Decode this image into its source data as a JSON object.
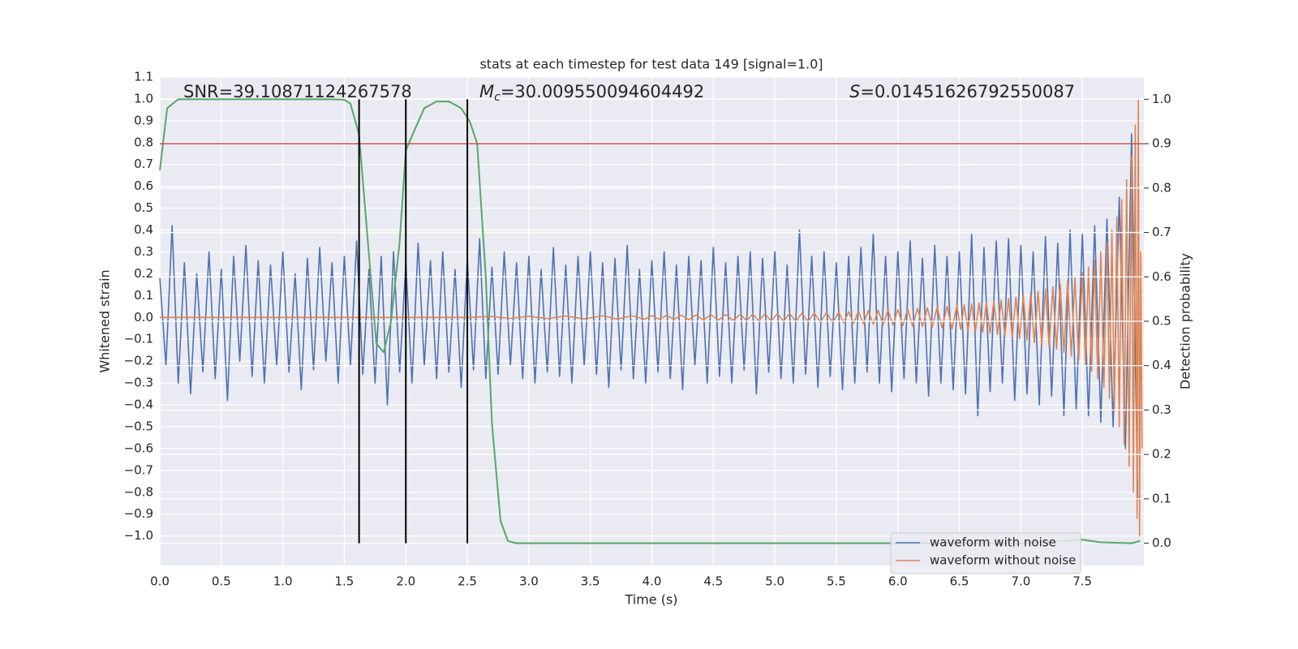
{
  "chart_data": {
    "type": "line",
    "title": "stats at each timestep for test data 149 [signal=1.0]",
    "xlabel": "Time (s)",
    "ylabel": "Whitened strain",
    "y2label": "Detection probability",
    "xlim": [
      0,
      8
    ],
    "ylim": [
      -1.135,
      1.1
    ],
    "y2lim": [
      -0.05,
      1.05
    ],
    "xticks": [
      {
        "value": 0,
        "label": "0.0"
      },
      0.5,
      {
        "value": 1,
        "label": "1.0"
      },
      1.5,
      {
        "value": 2,
        "label": "2.0"
      },
      2.5,
      {
        "value": 3,
        "label": "3.0"
      },
      3.5,
      {
        "value": 4,
        "label": "4.0"
      },
      4.5,
      {
        "value": 5,
        "label": "5.0"
      },
      5.5,
      {
        "value": 6,
        "label": "6.0"
      },
      6.5,
      {
        "value": 7,
        "label": "7.0"
      },
      7.5
    ],
    "yticks": [
      {
        "value": -1,
        "label": "−1.0"
      },
      {
        "value": -0.9,
        "label": "−0.9"
      },
      {
        "value": -0.8,
        "label": "−0.8"
      },
      {
        "value": -0.7,
        "label": "−0.7"
      },
      {
        "value": -0.6,
        "label": "−0.6"
      },
      {
        "value": -0.5,
        "label": "−0.5"
      },
      {
        "value": -0.4,
        "label": "−0.4"
      },
      {
        "value": -0.3,
        "label": "−0.3"
      },
      {
        "value": -0.2,
        "label": "−0.2"
      },
      {
        "value": -0.1,
        "label": "−0.1"
      },
      {
        "value": 0,
        "label": "0.0"
      },
      0.1,
      0.2,
      0.3,
      0.4,
      0.5,
      0.6,
      0.7,
      0.8,
      0.9,
      {
        "value": 1,
        "label": "1.0"
      },
      1.1
    ],
    "y2ticks": [
      {
        "value": 0,
        "label": "0.0"
      },
      0.1,
      0.2,
      0.3,
      0.4,
      0.5,
      0.6,
      0.7,
      0.8,
      0.9,
      {
        "value": 1,
        "label": "1.0"
      }
    ],
    "grid": true,
    "legend": "lower right",
    "annotations": [
      {
        "text": "SNR=39.10871124267578"
      },
      {
        "symbol": "M",
        "subscript": "c",
        "text": "=30.009550094604492"
      },
      {
        "symbol": "S",
        "text": "=0.01451626792550087"
      }
    ],
    "hlines": [
      {
        "value": 0.9,
        "axis": "y2",
        "color": "#c44e52"
      }
    ],
    "vlines": {
      "x": [
        1.62,
        2.0,
        2.5
      ],
      "y2range": [
        0,
        1
      ],
      "color": "#000000"
    },
    "series": [
      {
        "name": "waveform with noise",
        "color": "#4c72b0",
        "axis": "y",
        "x": [
          0,
          0.05,
          0.1,
          0.15,
          0.2,
          0.25,
          0.3,
          0.35,
          0.4,
          0.45,
          0.5,
          0.55,
          0.6,
          0.65,
          0.7,
          0.75,
          0.8,
          0.85,
          0.9,
          0.95,
          1,
          1.05,
          1.1,
          1.15,
          1.2,
          1.25,
          1.3,
          1.35,
          1.4,
          1.45,
          1.5,
          1.55,
          1.6,
          1.65,
          1.7,
          1.75,
          1.8,
          1.85,
          1.9,
          1.95,
          2,
          2.05,
          2.1,
          2.15,
          2.2,
          2.25,
          2.3,
          2.35,
          2.4,
          2.45,
          2.5,
          2.55,
          2.6,
          2.65,
          2.7,
          2.75,
          2.8,
          2.85,
          2.9,
          2.95,
          3,
          3.05,
          3.1,
          3.15,
          3.2,
          3.25,
          3.3,
          3.35,
          3.4,
          3.45,
          3.5,
          3.55,
          3.6,
          3.65,
          3.7,
          3.75,
          3.8,
          3.85,
          3.9,
          3.95,
          4,
          4.05,
          4.1,
          4.15,
          4.2,
          4.25,
          4.3,
          4.35,
          4.4,
          4.45,
          4.5,
          4.55,
          4.6,
          4.65,
          4.7,
          4.75,
          4.8,
          4.85,
          4.9,
          4.95,
          5,
          5.05,
          5.1,
          5.15,
          5.2,
          5.25,
          5.3,
          5.35,
          5.4,
          5.45,
          5.5,
          5.55,
          5.6,
          5.65,
          5.7,
          5.75,
          5.8,
          5.85,
          5.9,
          5.95,
          6,
          6.05,
          6.1,
          6.15,
          6.2,
          6.25,
          6.3,
          6.35,
          6.4,
          6.45,
          6.5,
          6.55,
          6.6,
          6.65,
          6.7,
          6.75,
          6.8,
          6.85,
          6.9,
          6.95,
          7,
          7.05,
          7.1,
          7.15,
          7.2,
          7.25,
          7.3,
          7.35,
          7.4,
          7.45,
          7.5,
          7.55,
          7.6,
          7.65,
          7.7,
          7.75,
          7.8,
          7.85,
          7.9,
          7.95
        ],
        "values": [
          0.18,
          -0.22,
          0.42,
          -0.3,
          0.25,
          -0.35,
          0.2,
          -0.25,
          0.3,
          -0.28,
          0.22,
          -0.38,
          0.28,
          -0.2,
          0.33,
          -0.27,
          0.26,
          -0.3,
          0.24,
          -0.22,
          0.3,
          -0.25,
          0.2,
          -0.33,
          0.27,
          -0.24,
          0.32,
          -0.2,
          0.25,
          -0.3,
          0.28,
          -0.22,
          0.35,
          -0.26,
          0.22,
          -0.3,
          0.28,
          -0.4,
          0.3,
          -0.25,
          0.25,
          -0.3,
          0.34,
          -0.22,
          0.26,
          -0.28,
          0.3,
          -0.25,
          0.22,
          -0.32,
          0.27,
          -0.24,
          0.36,
          -0.28,
          0.23,
          -0.26,
          0.3,
          -0.22,
          0.25,
          -0.28,
          0.28,
          -0.3,
          0.22,
          -0.25,
          0.32,
          -0.27,
          0.24,
          -0.3,
          0.28,
          -0.22,
          0.3,
          -0.26,
          0.25,
          -0.32,
          0.27,
          -0.24,
          0.33,
          -0.28,
          0.22,
          -0.3,
          0.26,
          -0.25,
          0.3,
          -0.28,
          0.24,
          -0.33,
          0.28,
          -0.22,
          0.26,
          -0.3,
          0.32,
          -0.27,
          0.25,
          -0.3,
          0.28,
          -0.24,
          0.3,
          -0.35,
          0.27,
          -0.25,
          0.3,
          -0.28,
          0.24,
          -0.3,
          0.4,
          -0.26,
          0.28,
          -0.32,
          0.3,
          -0.27,
          0.25,
          -0.33,
          0.28,
          -0.3,
          0.32,
          -0.25,
          0.38,
          -0.3,
          0.28,
          -0.34,
          0.3,
          -0.28,
          0.35,
          -0.3,
          0.27,
          -0.36,
          0.33,
          -0.3,
          0.28,
          -0.33,
          0.3,
          -0.35,
          0.38,
          -0.45,
          0.32,
          -0.34,
          0.35,
          -0.3,
          0.36,
          -0.38,
          0.33,
          -0.35,
          0.3,
          -0.4,
          0.37,
          -0.36,
          0.34,
          -0.45,
          0.4,
          -0.42,
          0.38,
          -0.45,
          0.42,
          -0.48,
          0.45,
          -0.5,
          0.55,
          -0.6,
          0.84,
          -0.83
        ]
      },
      {
        "name": "waveform without noise",
        "color": "#dd8452",
        "axis": "y",
        "x": [
          0,
          2.5,
          2.7,
          2.85,
          3.0,
          3.15,
          3.3,
          3.45,
          3.6,
          3.72,
          3.84,
          3.94,
          4.0,
          4.06,
          4.12,
          4.18,
          4.24,
          4.3,
          4.36,
          4.42,
          4.48,
          4.54,
          4.6,
          4.66,
          4.72,
          4.77,
          4.82,
          4.87,
          4.92,
          4.97,
          5.02,
          5.07,
          5.12,
          5.17,
          5.22,
          5.27,
          5.32,
          5.37,
          5.42,
          5.47,
          5.52,
          5.56,
          5.6,
          5.64,
          5.68,
          5.72,
          5.76,
          5.8,
          5.84,
          5.88,
          5.92,
          5.96,
          6.0,
          6.04,
          6.08,
          6.12,
          6.16,
          6.2,
          6.24,
          6.28,
          6.32,
          6.36,
          6.4,
          6.44,
          6.48,
          6.51,
          6.54,
          6.57,
          6.6,
          6.63,
          6.66,
          6.69,
          6.72,
          6.75,
          6.78,
          6.81,
          6.84,
          6.87,
          6.9,
          6.93,
          6.96,
          6.99,
          7.02,
          7.05,
          7.08,
          7.11,
          7.14,
          7.17,
          7.2,
          7.23,
          7.26,
          7.29,
          7.32,
          7.35,
          7.38,
          7.41,
          7.44,
          7.47,
          7.5,
          7.525,
          7.55,
          7.575,
          7.6,
          7.625,
          7.65,
          7.675,
          7.7,
          7.72,
          7.74,
          7.76,
          7.78,
          7.8,
          7.82,
          7.84,
          7.86,
          7.88,
          7.9,
          7.915,
          7.93,
          7.945,
          7.955,
          7.965,
          7.975,
          7.985
        ],
        "values": [
          0,
          0,
          0.004,
          -0.004,
          0.005,
          -0.005,
          0.006,
          -0.006,
          0.007,
          -0.007,
          0.007,
          -0.008,
          0.008,
          -0.008,
          0.009,
          -0.009,
          0.01,
          -0.01,
          0.011,
          -0.011,
          0.012,
          -0.012,
          0.013,
          -0.013,
          0.014,
          -0.014,
          0.015,
          -0.015,
          0.016,
          -0.016,
          0.017,
          -0.017,
          0.018,
          -0.018,
          0.019,
          -0.019,
          0.02,
          -0.021,
          0.022,
          -0.023,
          0.024,
          -0.025,
          0.026,
          -0.027,
          0.028,
          -0.029,
          0.03,
          -0.031,
          0.032,
          -0.033,
          0.034,
          -0.035,
          0.036,
          -0.037,
          0.038,
          -0.04,
          0.041,
          -0.042,
          0.044,
          -0.045,
          0.047,
          -0.048,
          0.05,
          -0.052,
          0.054,
          -0.056,
          0.058,
          -0.06,
          0.062,
          -0.064,
          0.066,
          -0.068,
          0.07,
          -0.072,
          0.075,
          -0.078,
          0.08,
          -0.083,
          0.086,
          -0.09,
          0.093,
          -0.097,
          0.1,
          -0.105,
          0.11,
          -0.115,
          0.12,
          -0.125,
          0.13,
          -0.135,
          0.14,
          -0.146,
          0.152,
          -0.16,
          0.168,
          -0.176,
          0.185,
          -0.195,
          0.205,
          -0.215,
          0.23,
          -0.245,
          0.26,
          -0.28,
          0.3,
          -0.32,
          0.345,
          -0.37,
          0.4,
          -0.43,
          0.46,
          -0.5,
          0.54,
          -0.58,
          0.63,
          -0.68,
          0.74,
          -0.8,
          0.88,
          -0.92,
          1.0,
          -1.0,
          0.3,
          -0.6
        ]
      },
      {
        "color": "#55a868",
        "axis": "y2",
        "x": [
          0,
          0.06,
          0.15,
          0.5,
          1.0,
          1.4,
          1.5,
          1.55,
          1.62,
          1.7,
          1.76,
          1.82,
          1.88,
          1.95,
          2.0,
          2.07,
          2.15,
          2.25,
          2.35,
          2.45,
          2.52,
          2.58,
          2.65,
          2.7,
          2.77,
          2.83,
          2.9,
          7.0,
          7.35,
          7.5,
          7.65,
          7.9,
          7.97
        ],
        "values": [
          0.84,
          0.98,
          1.0,
          1.0,
          1.0,
          1.0,
          0.999,
          0.99,
          0.92,
          0.65,
          0.45,
          0.43,
          0.5,
          0.68,
          0.885,
          0.93,
          0.98,
          0.995,
          0.995,
          0.98,
          0.95,
          0.9,
          0.6,
          0.27,
          0.05,
          0.005,
          0.0,
          0.0,
          0.005,
          0.008,
          0.002,
          0.0,
          0.005
        ]
      }
    ]
  }
}
